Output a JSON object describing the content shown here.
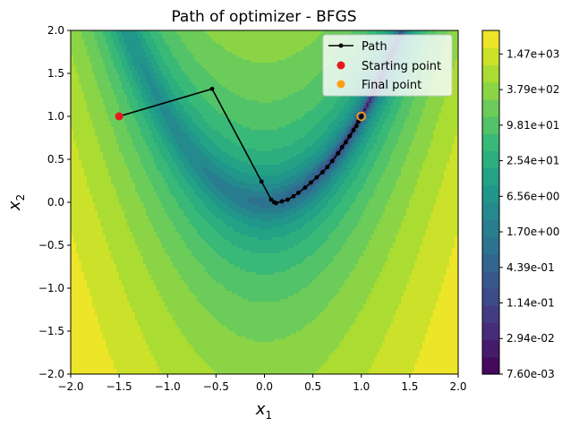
{
  "chart_data": {
    "type": "contour",
    "title": "Path of optimizer - BFGS",
    "xlabel": "x",
    "xlabel_sub": "1",
    "ylabel": "x",
    "ylabel_sub": "2",
    "xlim": [
      -2.0,
      2.0
    ],
    "ylim": [
      -2.0,
      2.0
    ],
    "xticks": [
      -2.0,
      -1.5,
      -1.0,
      -0.5,
      0.0,
      0.5,
      1.0,
      1.5,
      2.0
    ],
    "yticks": [
      -2.0,
      -1.5,
      -1.0,
      -0.5,
      0.0,
      0.5,
      1.0,
      1.5,
      2.0
    ],
    "xtick_labels": [
      "−2.0",
      "−1.5",
      "−1.0",
      "−0.5",
      "0.0",
      "0.5",
      "1.0",
      "1.5",
      "2.0"
    ],
    "ytick_labels": [
      "−2.0",
      "−1.5",
      "−1.0",
      "−0.5",
      "0.0",
      "0.5",
      "1.0",
      "1.5",
      "2.0"
    ],
    "function": "rosenbrock",
    "scale": "log",
    "colormap": "viridis",
    "colorbar": {
      "scale": "log",
      "min": 0.0076,
      "max": 3600,
      "ticks": [
        0.0076,
        0.0294,
        0.114,
        0.439,
        1.7,
        6.56,
        25.4,
        98.1,
        379,
        1470
      ],
      "tick_labels": [
        "7.60e-03",
        "2.94e-02",
        "1.14e-01",
        "4.39e-01",
        "1.70e+00",
        "6.56e+00",
        "2.54e+01",
        "9.81e+01",
        "3.79e+02",
        "1.47e+03"
      ]
    },
    "path": {
      "name": "Path",
      "color": "#000000",
      "x": [
        -1.5,
        -0.54,
        -0.03,
        0.07,
        0.1,
        0.12,
        0.18,
        0.24,
        0.3,
        0.35,
        0.42,
        0.48,
        0.54,
        0.6,
        0.65,
        0.7,
        0.76,
        0.8,
        0.84,
        0.88,
        0.92,
        0.95,
        0.97,
        1.0
      ],
      "y": [
        1.0,
        1.32,
        0.24,
        0.03,
        0.0,
        -0.01,
        0.01,
        0.03,
        0.07,
        0.11,
        0.17,
        0.23,
        0.29,
        0.35,
        0.41,
        0.48,
        0.57,
        0.64,
        0.7,
        0.77,
        0.84,
        0.89,
        0.94,
        1.0
      ]
    },
    "start_point": {
      "name": "Starting point",
      "x": -1.5,
      "y": 1.0,
      "color": "#e6191c"
    },
    "final_point": {
      "name": "Final point",
      "x": 1.0,
      "y": 1.0,
      "color": "#ff9f0e"
    },
    "legend": {
      "placement": "top-right",
      "entries": [
        "Path",
        "Starting point",
        "Final point"
      ]
    }
  }
}
